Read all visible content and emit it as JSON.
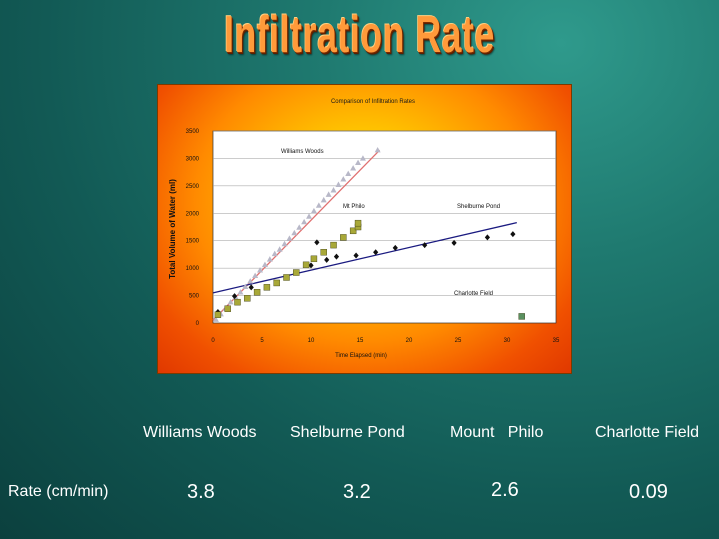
{
  "slide": {
    "title": "Infiltration Rate",
    "table": {
      "sites": [
        "Williams Woods",
        "Shelburne Pond",
        "Mount   Philo",
        "Charlotte Field"
      ],
      "row_label": "Rate (cm/min)",
      "rates": [
        "3.8",
        "3.2",
        "2.6",
        "0.09"
      ]
    }
  },
  "chart_data": {
    "type": "scatter",
    "title": "Comparison of Infiltration Rates",
    "xlabel": "Time Elapsed (min)",
    "ylabel": "Total Volume of Water (ml)",
    "xlim": [
      0,
      35
    ],
    "ylim": [
      0,
      3500
    ],
    "x_ticks": [
      "0",
      "5",
      "10",
      "15",
      "20",
      "25",
      "30",
      "35"
    ],
    "y_ticks": [
      "0",
      "500",
      "1000",
      "1500",
      "2000",
      "2500",
      "3000",
      "3500"
    ],
    "grid": true,
    "series": [
      {
        "name": "Williams Woods",
        "marker": "triangle",
        "color": "#b8b8c8",
        "trend_color": "#e07070",
        "trend": [
          [
            0,
            50
          ],
          [
            17,
            3150
          ]
        ],
        "points": [
          [
            0.3,
            60
          ],
          [
            0.8,
            160
          ],
          [
            1.3,
            260
          ],
          [
            1.8,
            380
          ],
          [
            2.3,
            470
          ],
          [
            2.8,
            560
          ],
          [
            3.3,
            660
          ],
          [
            3.8,
            760
          ],
          [
            4.3,
            860
          ],
          [
            4.8,
            960
          ],
          [
            5.3,
            1060
          ],
          [
            5.8,
            1160
          ],
          [
            6.3,
            1260
          ],
          [
            6.8,
            1340
          ],
          [
            7.3,
            1440
          ],
          [
            7.8,
            1540
          ],
          [
            8.3,
            1640
          ],
          [
            8.8,
            1740
          ],
          [
            9.3,
            1840
          ],
          [
            9.8,
            1940
          ],
          [
            10.3,
            2040
          ],
          [
            10.8,
            2140
          ],
          [
            11.3,
            2240
          ],
          [
            11.8,
            2340
          ],
          [
            12.3,
            2420
          ],
          [
            12.8,
            2520
          ],
          [
            13.3,
            2620
          ],
          [
            13.8,
            2720
          ],
          [
            14.3,
            2820
          ],
          [
            14.8,
            2920
          ],
          [
            15.3,
            3000
          ],
          [
            16.8,
            3150
          ]
        ]
      },
      {
        "name": "Shelburne Pond",
        "marker": "diamond",
        "color": "#101010",
        "trend_color": "#1a1a80",
        "trend": [
          [
            0,
            550
          ],
          [
            31,
            1830
          ]
        ],
        "points": [
          [
            0.5,
            200
          ],
          [
            2.2,
            490
          ],
          [
            3.9,
            650
          ],
          [
            10,
            1050
          ],
          [
            10.6,
            1470
          ],
          [
            11.6,
            1150
          ],
          [
            12.6,
            1210
          ],
          [
            14.6,
            1230
          ],
          [
            16.6,
            1290
          ],
          [
            18.6,
            1370
          ],
          [
            21.6,
            1420
          ],
          [
            24.6,
            1460
          ],
          [
            28,
            1560
          ],
          [
            30.6,
            1620
          ]
        ]
      },
      {
        "name": "Mt Philo",
        "marker": "square",
        "color": "#a8a838",
        "points": [
          [
            0.5,
            150
          ],
          [
            1.5,
            260
          ],
          [
            2.5,
            380
          ],
          [
            3.5,
            450
          ],
          [
            4.5,
            560
          ],
          [
            5.5,
            650
          ],
          [
            6.5,
            730
          ],
          [
            7.5,
            830
          ],
          [
            8.5,
            920
          ],
          [
            9.5,
            1060
          ],
          [
            10.3,
            1170
          ],
          [
            11.3,
            1290
          ],
          [
            12.3,
            1420
          ],
          [
            13.3,
            1560
          ],
          [
            14.3,
            1680
          ],
          [
            14.8,
            1750
          ],
          [
            14.8,
            1820
          ]
        ]
      },
      {
        "name": "Charlotte Field",
        "marker": "square",
        "color": "#5a9060",
        "points": [
          [
            31.5,
            120
          ]
        ]
      }
    ]
  }
}
